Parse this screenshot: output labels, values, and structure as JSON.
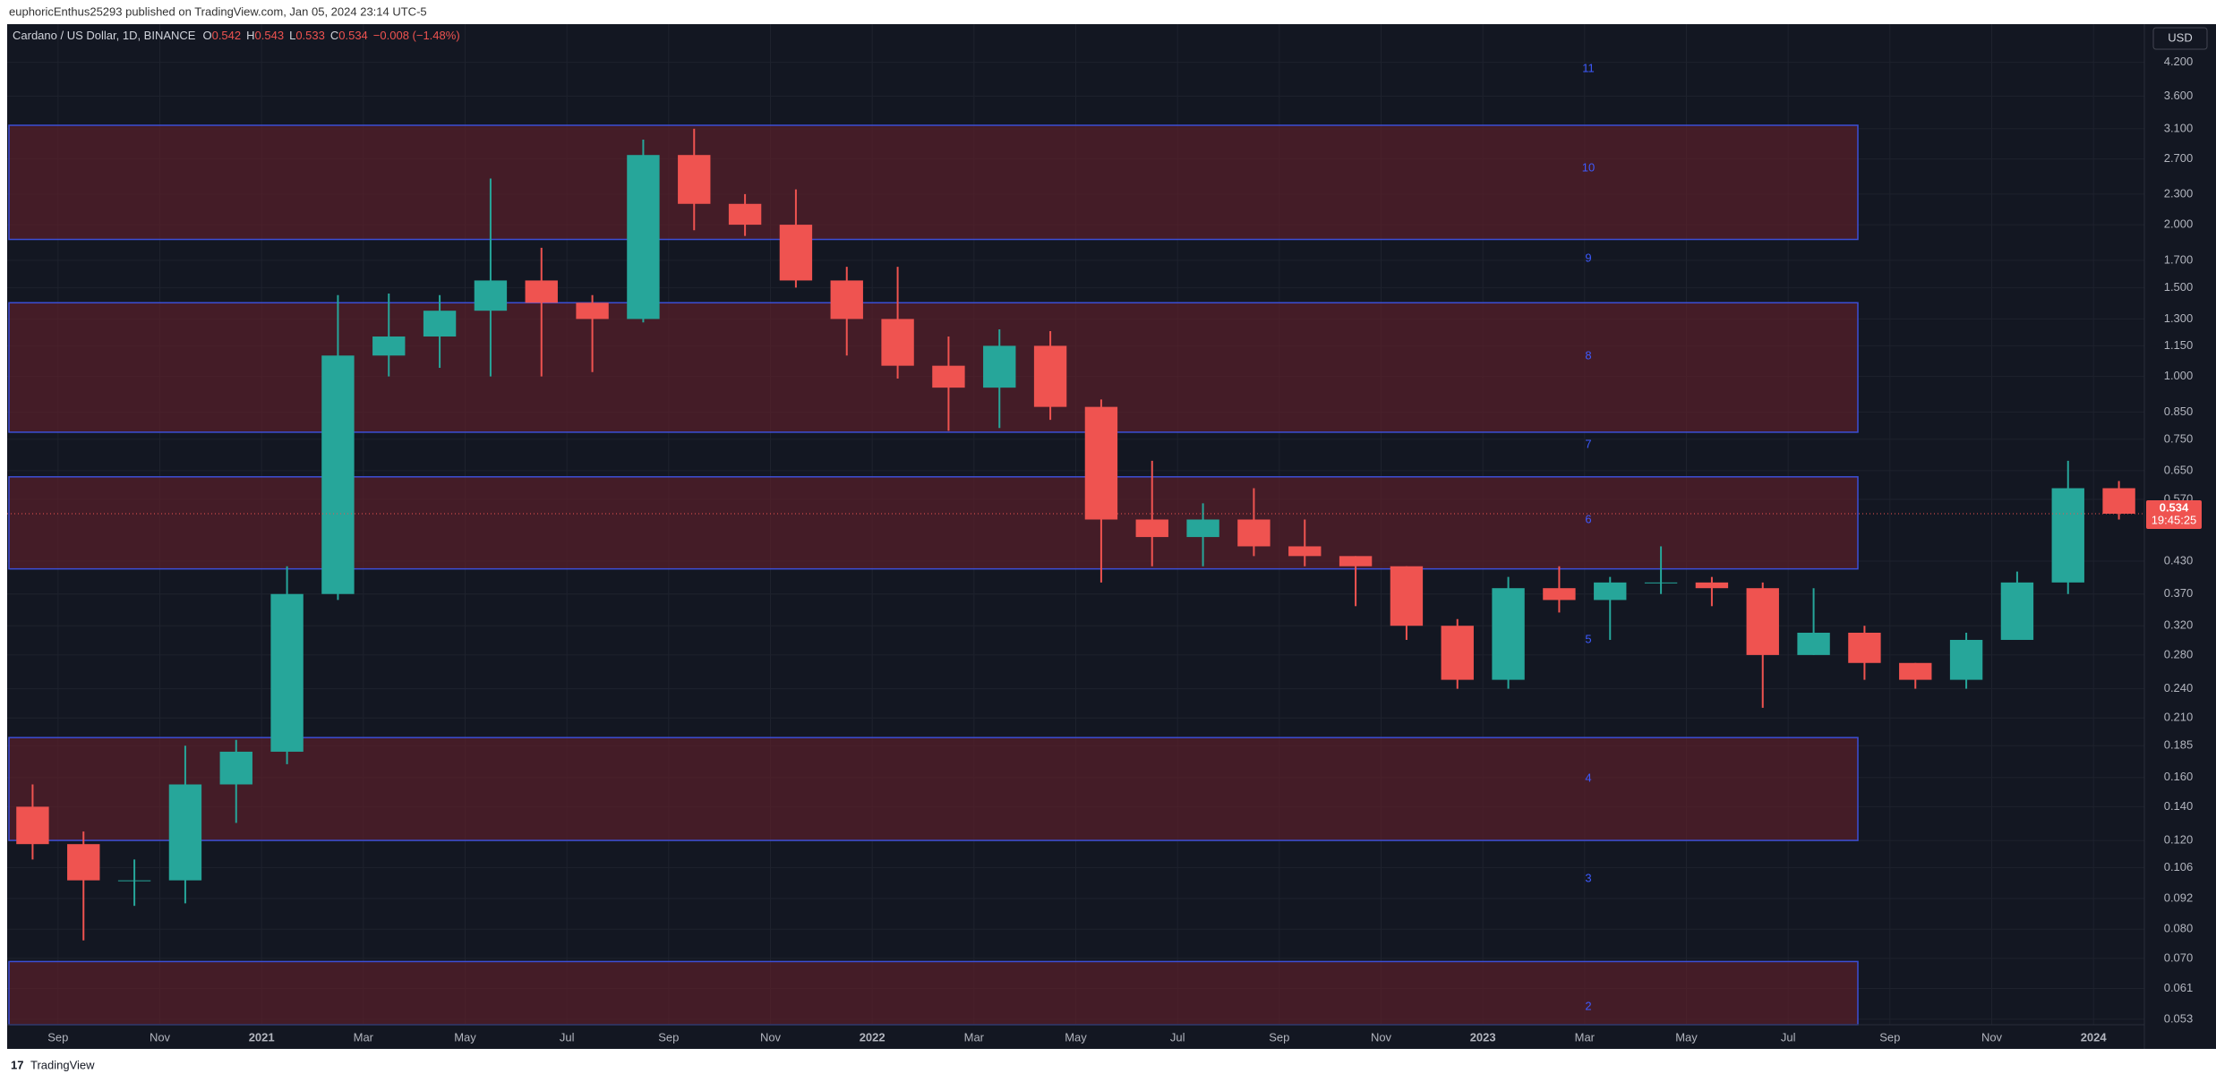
{
  "header": {
    "publisher": "euphoricEnthus25293 published on TradingView.com, Jan 05, 2024 23:14 UTC-5"
  },
  "footer": {
    "brand": "TradingView"
  },
  "chart_data": {
    "type": "candlestick",
    "title": "Cardano / US Dollar, 1D, BINANCE",
    "ohlc_legend": {
      "open": 0.542,
      "high": 0.543,
      "low": 0.533,
      "close": 0.534,
      "change": "−0.008 (−1.48%)"
    },
    "currency": "USD",
    "last_price": 0.534,
    "countdown": "19:45:25",
    "log_scale": true,
    "up_color": "#26a69a",
    "down_color": "#ef5350",
    "x": [
      "2020-08",
      "2020-09",
      "2020-10",
      "2020-11",
      "2020-12",
      "2021-01",
      "2021-02",
      "2021-03",
      "2021-04",
      "2021-05",
      "2021-06",
      "2021-07",
      "2021-08",
      "2021-09",
      "2021-10",
      "2021-11",
      "2021-12",
      "2022-01",
      "2022-02",
      "2022-03",
      "2022-04",
      "2022-05",
      "2022-06",
      "2022-07",
      "2022-08",
      "2022-09",
      "2022-10",
      "2022-11",
      "2022-12",
      "2023-01",
      "2023-02",
      "2023-03",
      "2023-04",
      "2023-05",
      "2023-06",
      "2023-07",
      "2023-08",
      "2023-09",
      "2023-10",
      "2023-11",
      "2023-12",
      "2024-01"
    ],
    "open": [
      0.14,
      0.118,
      0.1,
      0.1,
      0.155,
      0.18,
      0.37,
      1.1,
      1.2,
      1.35,
      1.55,
      1.4,
      1.3,
      2.75,
      2.2,
      2.0,
      1.55,
      1.3,
      1.05,
      0.95,
      1.15,
      0.87,
      0.52,
      0.48,
      0.52,
      0.46,
      0.44,
      0.42,
      0.32,
      0.25,
      0.38,
      0.36,
      0.39,
      0.39,
      0.38,
      0.28,
      0.31,
      0.27,
      0.25,
      0.3,
      0.39,
      0.6
    ],
    "high": [
      0.155,
      0.125,
      0.11,
      0.185,
      0.19,
      0.42,
      1.45,
      1.46,
      1.45,
      2.47,
      1.8,
      1.45,
      2.95,
      3.1,
      2.3,
      2.35,
      1.65,
      1.65,
      1.2,
      1.24,
      1.23,
      0.9,
      0.68,
      0.56,
      0.6,
      0.52,
      0.44,
      0.42,
      0.33,
      0.4,
      0.42,
      0.4,
      0.46,
      0.4,
      0.39,
      0.38,
      0.32,
      0.27,
      0.31,
      0.41,
      0.68,
      0.62
    ],
    "low": [
      0.11,
      0.076,
      0.089,
      0.09,
      0.13,
      0.17,
      0.36,
      1.0,
      1.04,
      1.0,
      1.0,
      1.02,
      1.28,
      1.95,
      1.9,
      1.5,
      1.1,
      0.99,
      0.78,
      0.79,
      0.82,
      0.39,
      0.42,
      0.42,
      0.44,
      0.42,
      0.35,
      0.3,
      0.24,
      0.24,
      0.34,
      0.3,
      0.37,
      0.35,
      0.22,
      0.28,
      0.25,
      0.24,
      0.24,
      0.3,
      0.37,
      0.52
    ],
    "close": [
      0.118,
      0.1,
      0.1,
      0.155,
      0.18,
      0.37,
      1.1,
      1.2,
      1.35,
      1.55,
      1.4,
      1.3,
      2.75,
      2.2,
      2.0,
      1.55,
      1.3,
      1.05,
      0.95,
      1.15,
      0.87,
      0.52,
      0.48,
      0.52,
      0.46,
      0.44,
      0.42,
      0.32,
      0.25,
      0.38,
      0.36,
      0.39,
      0.39,
      0.38,
      0.28,
      0.31,
      0.27,
      0.25,
      0.3,
      0.39,
      0.6,
      0.534
    ],
    "xlim": [
      "2020-08",
      "2024-01"
    ],
    "xticks": [
      {
        "value": "2020-09",
        "label": "Sep"
      },
      {
        "value": "2020-11",
        "label": "Nov"
      },
      {
        "value": "2021-01",
        "label": "2021"
      },
      {
        "value": "2021-03",
        "label": "Mar"
      },
      {
        "value": "2021-05",
        "label": "May"
      },
      {
        "value": "2021-07",
        "label": "Jul"
      },
      {
        "value": "2021-09",
        "label": "Sep"
      },
      {
        "value": "2021-11",
        "label": "Nov"
      },
      {
        "value": "2022-01",
        "label": "2022"
      },
      {
        "value": "2022-03",
        "label": "Mar"
      },
      {
        "value": "2022-05",
        "label": "May"
      },
      {
        "value": "2022-07",
        "label": "Jul"
      },
      {
        "value": "2022-09",
        "label": "Sep"
      },
      {
        "value": "2022-11",
        "label": "Nov"
      },
      {
        "value": "2023-01",
        "label": "2023"
      },
      {
        "value": "2023-03",
        "label": "Mar"
      },
      {
        "value": "2023-05",
        "label": "May"
      },
      {
        "value": "2023-07",
        "label": "Jul"
      },
      {
        "value": "2023-09",
        "label": "Sep"
      },
      {
        "value": "2023-11",
        "label": "Nov"
      },
      {
        "value": "2024-01",
        "label": "2024"
      }
    ],
    "ylim": [
      0.0517,
      5.0
    ],
    "yticks": [
      {
        "value": 4.2,
        "label": "4.200"
      },
      {
        "value": 3.6,
        "label": "3.600"
      },
      {
        "value": 3.1,
        "label": "3.100"
      },
      {
        "value": 2.7,
        "label": "2.700"
      },
      {
        "value": 2.3,
        "label": "2.300"
      },
      {
        "value": 2.0,
        "label": "2.000"
      },
      {
        "value": 1.7,
        "label": "1.700"
      },
      {
        "value": 1.5,
        "label": "1.500"
      },
      {
        "value": 1.3,
        "label": "1.300"
      },
      {
        "value": 1.15,
        "label": "1.150"
      },
      {
        "value": 1.0,
        "label": "1.000"
      },
      {
        "value": 0.85,
        "label": "0.850"
      },
      {
        "value": 0.75,
        "label": "0.750"
      },
      {
        "value": 0.65,
        "label": "0.650"
      },
      {
        "value": 0.57,
        "label": "0.570"
      },
      {
        "value": 0.43,
        "label": "0.430"
      },
      {
        "value": 0.37,
        "label": "0.370"
      },
      {
        "value": 0.32,
        "label": "0.320"
      },
      {
        "value": 0.28,
        "label": "0.280"
      },
      {
        "value": 0.24,
        "label": "0.240"
      },
      {
        "value": 0.21,
        "label": "0.210"
      },
      {
        "value": 0.185,
        "label": "0.185"
      },
      {
        "value": 0.16,
        "label": "0.160"
      },
      {
        "value": 0.14,
        "label": "0.140"
      },
      {
        "value": 0.12,
        "label": "0.120"
      },
      {
        "value": 0.106,
        "label": "0.106"
      },
      {
        "value": 0.092,
        "label": "0.092"
      },
      {
        "value": 0.08,
        "label": "0.080"
      },
      {
        "value": 0.07,
        "label": "0.070"
      },
      {
        "value": 0.061,
        "label": "0.061"
      },
      {
        "value": 0.053,
        "label": "0.053"
      }
    ],
    "grid": true,
    "zones": [
      {
        "low": 1.87,
        "high": 3.15
      },
      {
        "low": 0.775,
        "high": 1.4
      },
      {
        "low": 0.415,
        "high": 0.632
      },
      {
        "low": 0.12,
        "high": 0.192
      },
      {
        "low": 0.0517,
        "high": 0.069
      }
    ],
    "zone_color": "#5a1f2a",
    "zone_border": "#3d4fd6",
    "annotations": [
      "11",
      "10",
      "9",
      "8",
      "7",
      "6",
      "5",
      "4",
      "3",
      "2"
    ]
  }
}
